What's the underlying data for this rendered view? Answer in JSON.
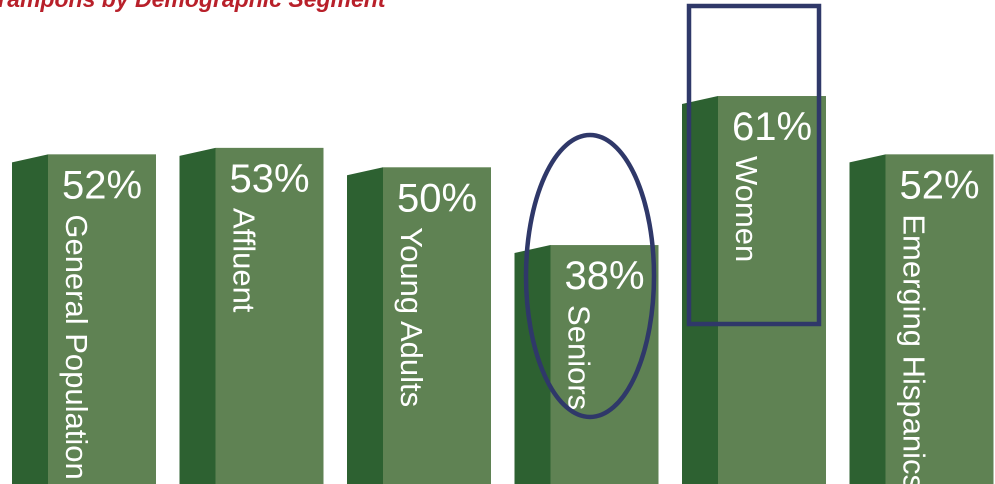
{
  "chart_data": {
    "type": "bar",
    "title": "Tampons by Demographic Segment",
    "categories": [
      "General Population",
      "Affluent",
      "Young Adults",
      "Seniors",
      "Women",
      "Emerging Hispanics"
    ],
    "values": [
      52,
      53,
      50,
      38,
      61,
      52
    ],
    "value_labels": [
      "52%",
      "53%",
      "50%",
      "38%",
      "61%",
      "52%"
    ],
    "ylim": [
      0,
      75
    ],
    "grid": false,
    "legend": "none",
    "annotations": [
      {
        "category": "Seniors",
        "shape": "ellipse"
      },
      {
        "category": "Women",
        "shape": "rectangle"
      }
    ]
  },
  "colors": {
    "bar_front": "#5f8253",
    "bar_side": "#2d6131",
    "bar_top": "#3e7238",
    "annotation": "#2f3869",
    "title": "#b8202a"
  }
}
